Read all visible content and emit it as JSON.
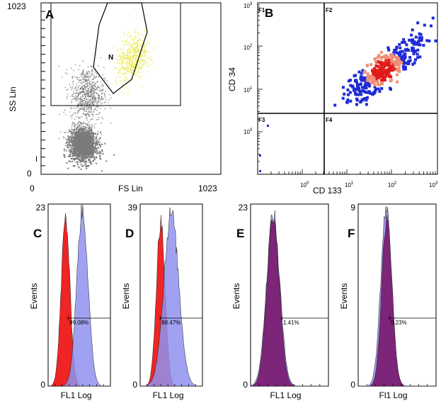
{
  "colors": {
    "scatter_gray": "#7a7a7a",
    "gate_yellow": "#e8e84a",
    "density_blue": "#1f2bd6",
    "density_red": "#e21a1a",
    "density_salmon": "#f08f76",
    "hist_red": "#ee1111",
    "hist_blue": "#8f92ee",
    "hist_purple": "#7a1a6e"
  },
  "chart_data": [
    {
      "panel": "A",
      "type": "scatter",
      "xlabel": "FS Lin",
      "ylabel": "SS Lin",
      "x_ticks": [
        "0",
        "1023"
      ],
      "y_ticks": [
        "0",
        "1023"
      ],
      "xlim": [
        0,
        1023
      ],
      "ylim": [
        0,
        1023
      ],
      "gate_label": "N",
      "marker": "I",
      "populations": [
        {
          "color": "gray",
          "x_center": 230,
          "y_center": 210,
          "x_spread": 70,
          "y_spread": 80,
          "count": 1400
        },
        {
          "color": "gray",
          "x_center": 260,
          "y_center": 480,
          "x_spread": 95,
          "y_spread": 160,
          "count": 700
        },
        {
          "color": "yellow",
          "x_center": 520,
          "y_center": 700,
          "x_spread": 85,
          "y_spread": 140,
          "count": 600
        }
      ]
    },
    {
      "panel": "B",
      "type": "scatter",
      "xlabel": "CD 133",
      "ylabel": "CD 34",
      "x_ticks": [
        "10^0",
        "10^1",
        "10^2",
        "10^3"
      ],
      "y_ticks": [
        "10^0",
        "10^1",
        "10^2",
        "10^3"
      ],
      "xlim": [
        0.1,
        1000
      ],
      "ylim": [
        0.1,
        1000
      ],
      "scale": "log",
      "quadrants": [
        "F1",
        "F2",
        "F3",
        "F4"
      ],
      "quadrant_cut": {
        "x": 2.2,
        "y": 2.5
      }
    },
    {
      "panel": "C",
      "type": "area",
      "xlabel": "FL1 Log",
      "ylabel": "Events",
      "y_ticks": [
        "0",
        "23"
      ],
      "ylim": [
        0,
        23
      ],
      "marker_percent": "99.08%",
      "series": [
        {
          "color": "red",
          "center": 0.28,
          "width": 0.07,
          "height": 0.92
        },
        {
          "color": "blue",
          "center": 0.55,
          "width": 0.09,
          "height": 0.97
        }
      ]
    },
    {
      "panel": "D",
      "type": "area",
      "xlabel": "FL1 Log",
      "ylabel": "Events",
      "y_ticks": [
        "0",
        "39"
      ],
      "ylim": [
        0,
        39
      ],
      "marker_percent": "88.47%",
      "series": [
        {
          "color": "red",
          "center": 0.33,
          "width": 0.07,
          "height": 0.9
        },
        {
          "color": "blue",
          "center": 0.5,
          "width": 0.12,
          "height": 0.95
        }
      ]
    },
    {
      "panel": "E",
      "type": "area",
      "xlabel": "FL1 Log",
      "ylabel": "Events",
      "y_ticks": [
        "0",
        "23"
      ],
      "ylim": [
        0,
        23
      ],
      "marker_percent": "1.41%",
      "series": [
        {
          "color": "blue",
          "center": 0.29,
          "width": 0.085,
          "height": 0.94
        },
        {
          "color": "purple",
          "center": 0.29,
          "width": 0.08,
          "height": 0.92
        }
      ]
    },
    {
      "panel": "F",
      "type": "area",
      "xlabel": "Fl1 Log",
      "ylabel": "Events",
      "y_ticks": [
        "0",
        "9"
      ],
      "ylim": [
        0,
        9
      ],
      "marker_percent": "0.23%",
      "series": [
        {
          "color": "blue",
          "center": 0.36,
          "width": 0.07,
          "height": 0.97
        },
        {
          "color": "purple",
          "center": 0.37,
          "width": 0.065,
          "height": 0.94
        }
      ]
    }
  ]
}
